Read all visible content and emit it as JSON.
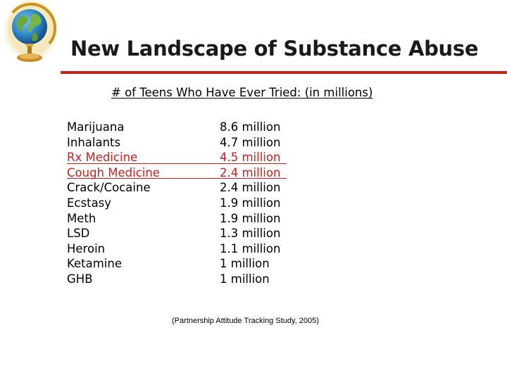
{
  "slide": {
    "title": "New Landscape of Substance Abuse",
    "subtitle": "# of Teens Who Have Ever Tried: (in millions)",
    "citation": "(Partnership Attitude Tracking Study, 2005)",
    "logo_icon": "globe-icon",
    "accent_color": "#c8201e",
    "rule_color": "#c8201e"
  },
  "drugs": [
    {
      "name": "Marijuana",
      "count": "8.6 million",
      "highlight": false
    },
    {
      "name": "Inhalants",
      "count": "4.7 million",
      "highlight": false
    },
    {
      "name": "Rx Medicine",
      "count": "4.5 million",
      "highlight": true
    },
    {
      "name": "Cough Medicine",
      "count": "2.4 million",
      "highlight": true
    },
    {
      "name": "Crack/Cocaine",
      "count": "2.4 million",
      "highlight": false
    },
    {
      "name": "Ecstasy",
      "count": "1.9 million",
      "highlight": false
    },
    {
      "name": "Meth",
      "count": "1.9 million",
      "highlight": false
    },
    {
      "name": "LSD",
      "count": "1.3 million",
      "highlight": false
    },
    {
      "name": "Heroin",
      "count": "1.1 million",
      "highlight": false
    },
    {
      "name": "Ketamine",
      "count": "1 million",
      "highlight": false
    },
    {
      "name": "GHB",
      "count": "1 million",
      "highlight": false
    }
  ]
}
